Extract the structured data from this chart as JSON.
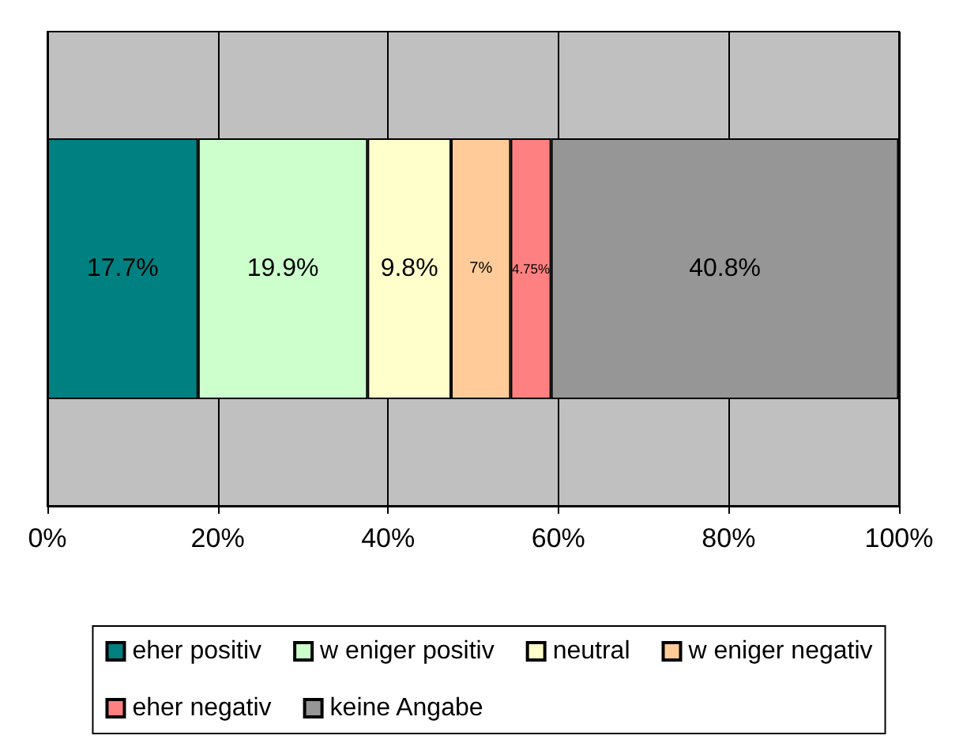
{
  "chart_data": {
    "type": "bar",
    "orientation": "horizontal",
    "stacked": true,
    "categories": [
      null
    ],
    "series": [
      {
        "name": "eher positiv",
        "color": "#008080",
        "values": [
          17.7
        ],
        "value_labels": [
          "17.7%"
        ]
      },
      {
        "name": "w eniger positiv",
        "color": "#ccffcc",
        "values": [
          19.9
        ],
        "value_labels": [
          "19.9%"
        ]
      },
      {
        "name": "neutral",
        "color": "#ffffcc",
        "values": [
          9.8
        ],
        "value_labels": [
          "9.8%"
        ]
      },
      {
        "name": "w eniger negativ",
        "color": "#ffcc99",
        "values": [
          7
        ],
        "value_labels": [
          "7%"
        ]
      },
      {
        "name": "eher negativ",
        "color": "#ff8080",
        "values": [
          4.75
        ],
        "value_labels": [
          "4.75%"
        ]
      },
      {
        "name": "keine Angabe",
        "color": "#969696",
        "values": [
          40.8
        ],
        "value_labels": [
          "40.8%"
        ]
      }
    ],
    "xlim": [
      0,
      100
    ],
    "xticks": [
      {
        "value": 0,
        "label": "0%"
      },
      {
        "value": 20,
        "label": "20%"
      },
      {
        "value": 40,
        "label": "40%"
      },
      {
        "value": 60,
        "label": "60%"
      },
      {
        "value": 80,
        "label": "80%"
      },
      {
        "value": 100,
        "label": "100%"
      }
    ],
    "grid": "x",
    "legend": "bottom"
  }
}
